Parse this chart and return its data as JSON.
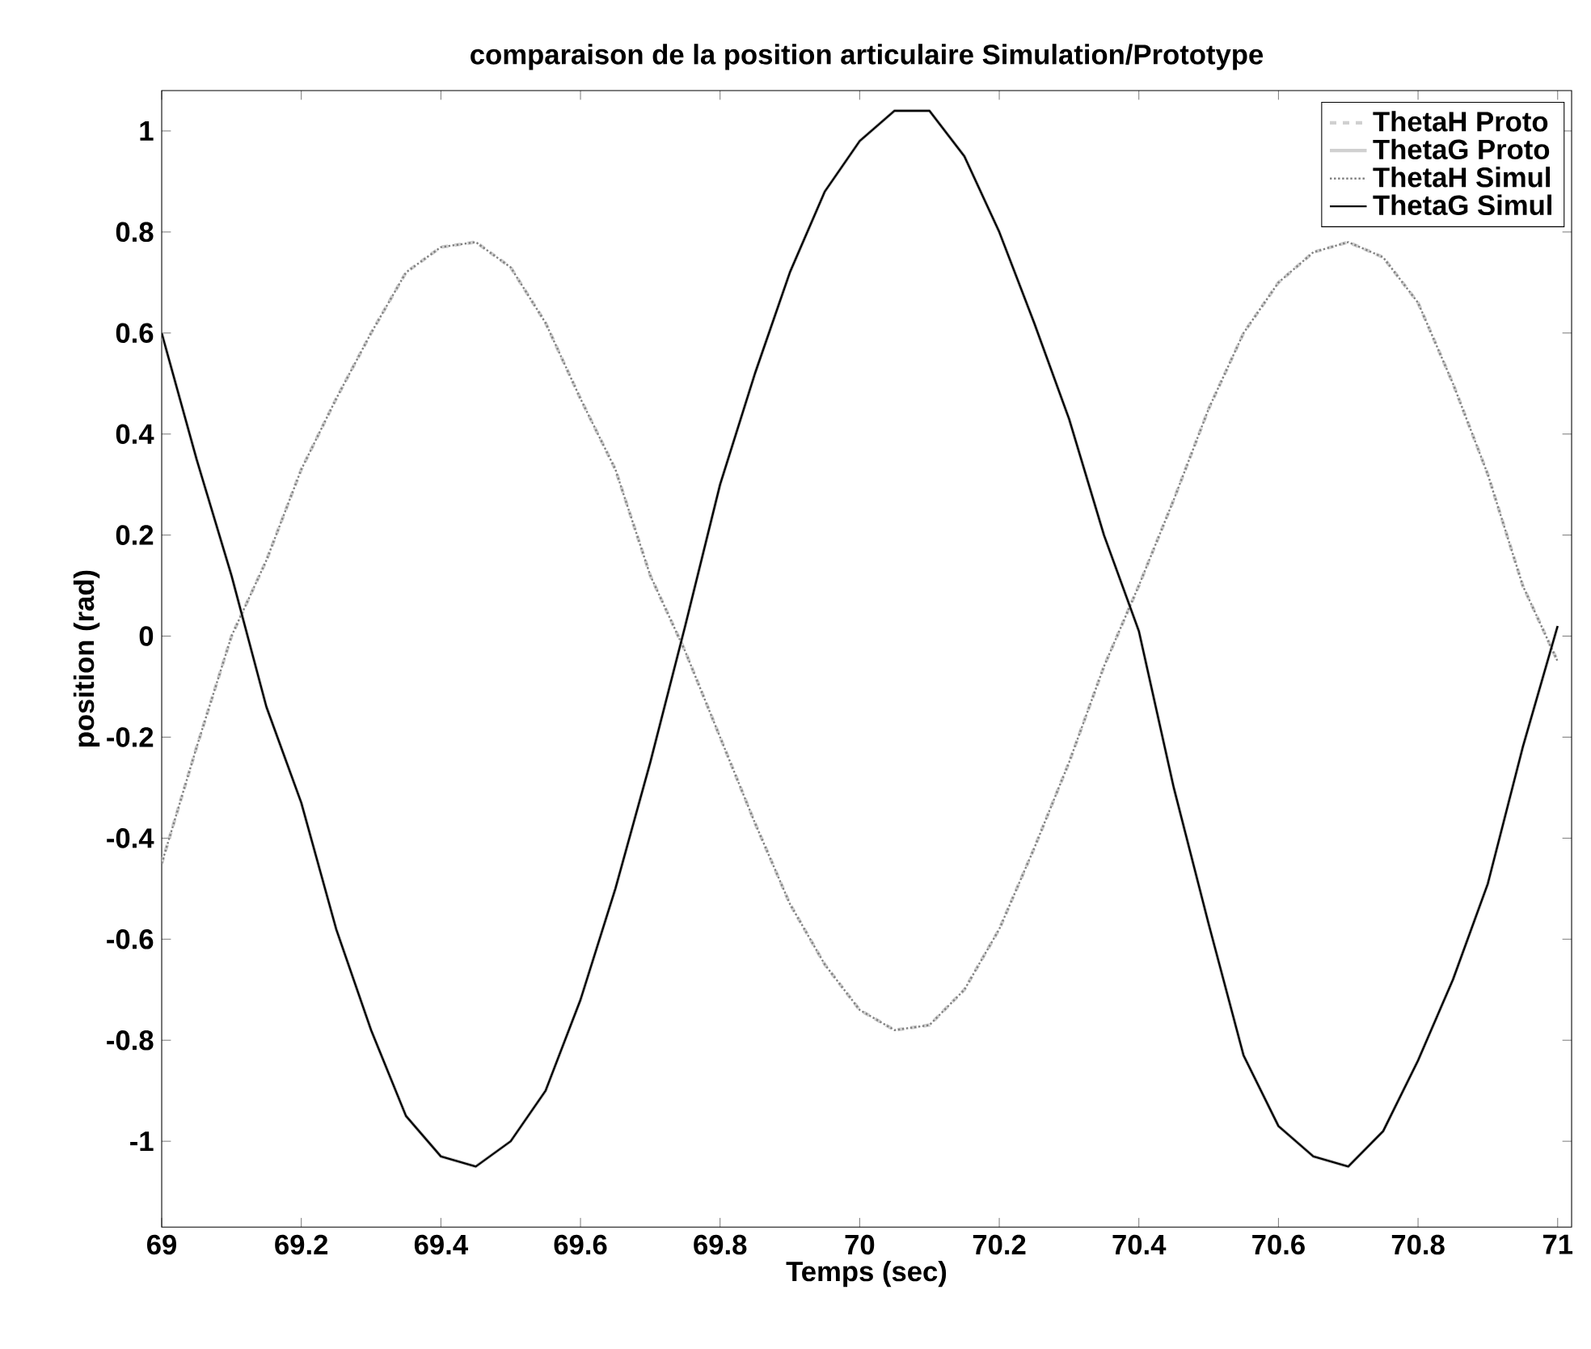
{
  "chart_data": {
    "type": "line",
    "title": "comparaison de la position articulaire Simulation/Prototype",
    "xlabel": "Temps (sec)",
    "ylabel": "position (rad)",
    "x": [
      69.0,
      69.05,
      69.1,
      69.15,
      69.2,
      69.25,
      69.3,
      69.35,
      69.4,
      69.45,
      69.5,
      69.55,
      69.6,
      69.65,
      69.7,
      69.75,
      69.8,
      69.85,
      69.9,
      69.95,
      70.0,
      70.05,
      70.1,
      70.15,
      70.2,
      70.25,
      70.3,
      70.35,
      70.4,
      70.45,
      70.5,
      70.55,
      70.6,
      70.65,
      70.7,
      70.75,
      70.8,
      70.85,
      70.9,
      70.95,
      71.0
    ],
    "series": [
      {
        "name": "ThetaH Proto",
        "color": "#d0d0d0",
        "line_style": "dashed",
        "values": [
          -0.45,
          -0.22,
          0.0,
          0.15,
          0.33,
          0.47,
          0.6,
          0.72,
          0.77,
          0.78,
          0.73,
          0.62,
          0.47,
          0.33,
          0.12,
          -0.03,
          -0.2,
          -0.37,
          -0.53,
          -0.65,
          -0.74,
          -0.78,
          -0.77,
          -0.7,
          -0.58,
          -0.42,
          -0.25,
          -0.06,
          0.1,
          0.27,
          0.45,
          0.6,
          0.7,
          0.76,
          0.78,
          0.75,
          0.66,
          0.5,
          0.32,
          0.1,
          -0.05
        ]
      },
      {
        "name": "ThetaG Proto",
        "color": "#d0d0d0",
        "line_style": "solid",
        "values": [
          0.6,
          0.35,
          0.12,
          -0.14,
          -0.33,
          -0.58,
          -0.78,
          -0.95,
          -1.03,
          -1.05,
          -1.0,
          -0.9,
          -0.72,
          -0.5,
          -0.25,
          0.02,
          0.3,
          0.52,
          0.72,
          0.88,
          0.98,
          1.04,
          1.04,
          0.95,
          0.8,
          0.62,
          0.43,
          0.2,
          0.01,
          -0.3,
          -0.57,
          -0.83,
          -0.97,
          -1.03,
          -1.05,
          -0.98,
          -0.84,
          -0.68,
          -0.49,
          -0.22,
          0.02
        ]
      },
      {
        "name": "ThetaH Simul",
        "color": "#808080",
        "line_style": "dotted",
        "values": [
          -0.45,
          -0.22,
          0.0,
          0.15,
          0.33,
          0.47,
          0.6,
          0.72,
          0.77,
          0.78,
          0.73,
          0.62,
          0.47,
          0.33,
          0.12,
          -0.03,
          -0.2,
          -0.37,
          -0.53,
          -0.65,
          -0.74,
          -0.78,
          -0.77,
          -0.7,
          -0.58,
          -0.42,
          -0.25,
          -0.06,
          0.1,
          0.27,
          0.45,
          0.6,
          0.7,
          0.76,
          0.78,
          0.75,
          0.66,
          0.5,
          0.32,
          0.1,
          -0.05
        ]
      },
      {
        "name": "ThetaG Simul",
        "color": "#000000",
        "line_style": "solid",
        "values": [
          0.6,
          0.35,
          0.12,
          -0.14,
          -0.33,
          -0.58,
          -0.78,
          -0.95,
          -1.03,
          -1.05,
          -1.0,
          -0.9,
          -0.72,
          -0.5,
          -0.25,
          0.02,
          0.3,
          0.52,
          0.72,
          0.88,
          0.98,
          1.04,
          1.04,
          0.95,
          0.8,
          0.62,
          0.43,
          0.2,
          0.01,
          -0.3,
          -0.57,
          -0.83,
          -0.97,
          -1.03,
          -1.05,
          -0.98,
          -0.84,
          -0.68,
          -0.49,
          -0.22,
          0.02
        ]
      }
    ],
    "xlim": [
      69,
      71.02
    ],
    "ylim": [
      -1.17,
      1.08
    ],
    "xticks": [
      69,
      69.2,
      69.4,
      69.6,
      69.8,
      70,
      70.2,
      70.4,
      70.6,
      70.8,
      71
    ],
    "yticks": [
      -1,
      -0.8,
      -0.6,
      -0.4,
      -0.2,
      0,
      0.2,
      0.4,
      0.6,
      0.8,
      1
    ],
    "legend": "top right",
    "grid": false,
    "marker": "none"
  }
}
